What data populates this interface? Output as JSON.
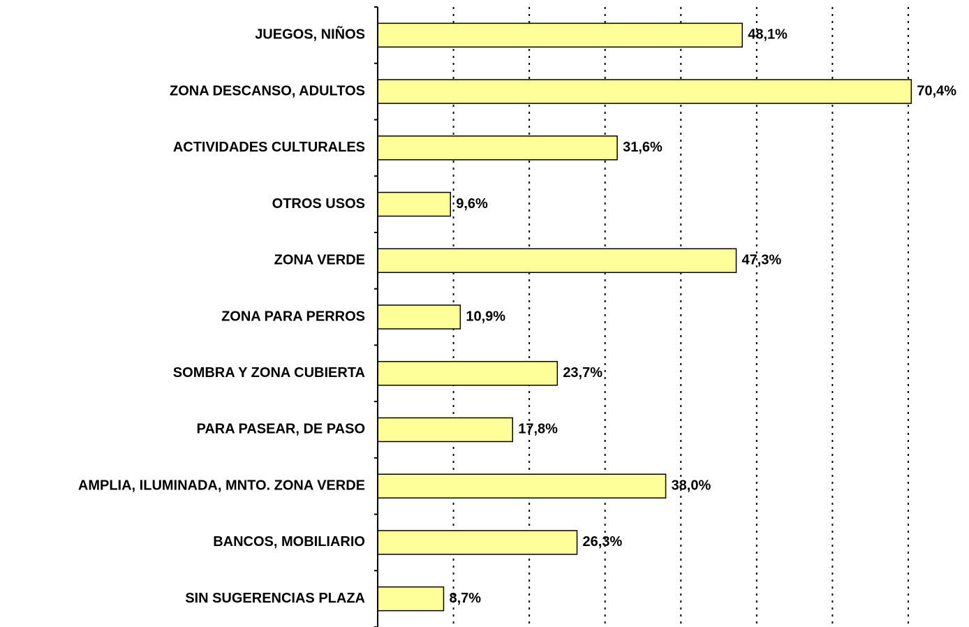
{
  "chart_data": {
    "type": "barh",
    "categories": [
      "JUEGOS, NIÑOS",
      "ZONA DESCANSO, ADULTOS",
      "ACTIVIDADES CULTURALES",
      "OTROS USOS",
      "ZONA VERDE",
      "ZONA PARA PERROS",
      "SOMBRA Y ZONA CUBIERTA",
      "PARA PASEAR, DE PASO",
      "AMPLIA, ILUMINADA, MNTO. ZONA VERDE",
      "BANCOS, MOBILIARIO",
      "SIN SUGERENCIAS PLAZA"
    ],
    "values": [
      48.1,
      70.4,
      31.6,
      9.6,
      47.3,
      10.9,
      23.7,
      17.8,
      38.0,
      26.3,
      8.7
    ],
    "value_labels": [
      "48,1%",
      "70,4%",
      "31,6%",
      "9,6%",
      "47,3%",
      "10,9%",
      "23,7%",
      "17,8%",
      "38,0%",
      "26,3%",
      "8,7%"
    ],
    "color": "#ffff99",
    "xlim": [
      0,
      70
    ],
    "xticks": [
      10,
      20,
      30,
      40,
      50,
      60,
      70
    ],
    "grid": true
  }
}
